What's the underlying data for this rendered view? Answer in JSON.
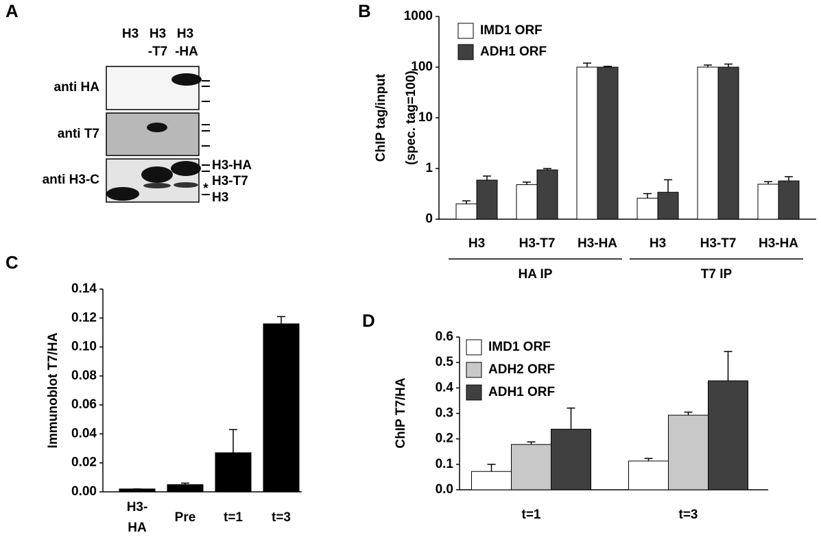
{
  "blot": {
    "label": "A",
    "lanes": [
      [
        "H3"
      ],
      [
        "H3",
        "-T7"
      ],
      [
        "H3",
        "-HA"
      ]
    ],
    "rows": [
      "anti HA",
      "anti T7",
      "anti H3-C"
    ],
    "markers": [
      "H3-HA",
      "H3-T7",
      "H3"
    ],
    "asterisk": "*"
  },
  "chart_data": [
    {
      "type": "bar",
      "label": "B",
      "log_scale": true,
      "ylabel": [
        "ChIP tag/input",
        "(spec. tag=100)"
      ],
      "groups": [
        {
          "name": "HA IP",
          "categories": [
            "H3",
            "H3-T7",
            "H3-HA"
          ]
        },
        {
          "name": "T7 IP",
          "categories": [
            "H3",
            "H3-T7",
            "H3-HA"
          ]
        }
      ],
      "series": [
        {
          "name": "IMD1 ORF",
          "color": "#ffffff",
          "values": [
            0.2,
            0.48,
            100,
            0.26,
            100,
            0.49
          ],
          "errors": [
            0.03,
            0.06,
            20,
            0.06,
            10,
            0.06
          ]
        },
        {
          "name": "ADH1 ORF",
          "color": "#404040",
          "values": [
            0.59,
            0.94,
            100,
            0.34,
            100,
            0.57
          ],
          "errors": [
            0.12,
            0.06,
            4,
            0.26,
            15,
            0.12
          ]
        }
      ],
      "ylim": [
        0.1,
        1000
      ],
      "yticks": [
        {
          "value": 0.1,
          "label": "0"
        },
        1,
        10,
        100,
        1000
      ],
      "legend": "upper left",
      "grid": false
    },
    {
      "type": "bar",
      "label": "C",
      "ylabel": "Immunoblot T7/HA",
      "categories": [
        "H3-\nHA",
        "Pre",
        "t=1",
        "t=3"
      ],
      "values": [
        0.002,
        0.005,
        0.027,
        0.116
      ],
      "errors": [
        0,
        0.001,
        0.016,
        0.005
      ],
      "color": "#000000",
      "ylim": [
        0,
        0.14
      ],
      "yticks": [
        {
          "value": 0,
          "label": "0.00"
        },
        0.02,
        0.04,
        0.06,
        0.08,
        {
          "value": 0.1,
          "label": "0.10"
        },
        0.12,
        0.14
      ],
      "grid": false
    },
    {
      "type": "bar",
      "label": "D",
      "ylabel": "ChIP T7/HA",
      "categories": [
        "t=1",
        "t=3"
      ],
      "series": [
        {
          "name": "IMD1 ORF",
          "color": "#ffffff",
          "values": [
            0.072,
            0.113
          ],
          "errors": [
            0.028,
            0.01
          ]
        },
        {
          "name": "ADH2 ORF",
          "color": "#c8c8c8",
          "values": [
            0.178,
            0.293
          ],
          "errors": [
            0.01,
            0.012
          ]
        },
        {
          "name": "ADH1 ORF",
          "color": "#404040",
          "values": [
            0.238,
            0.428
          ],
          "errors": [
            0.083,
            0.115
          ]
        }
      ],
      "ylim": [
        0,
        0.6
      ],
      "yticks": [
        {
          "value": 0,
          "label": "0.0"
        },
        0.1,
        0.2,
        0.3,
        0.4,
        0.5,
        0.6
      ],
      "legend": "upper left",
      "grid": false
    }
  ]
}
